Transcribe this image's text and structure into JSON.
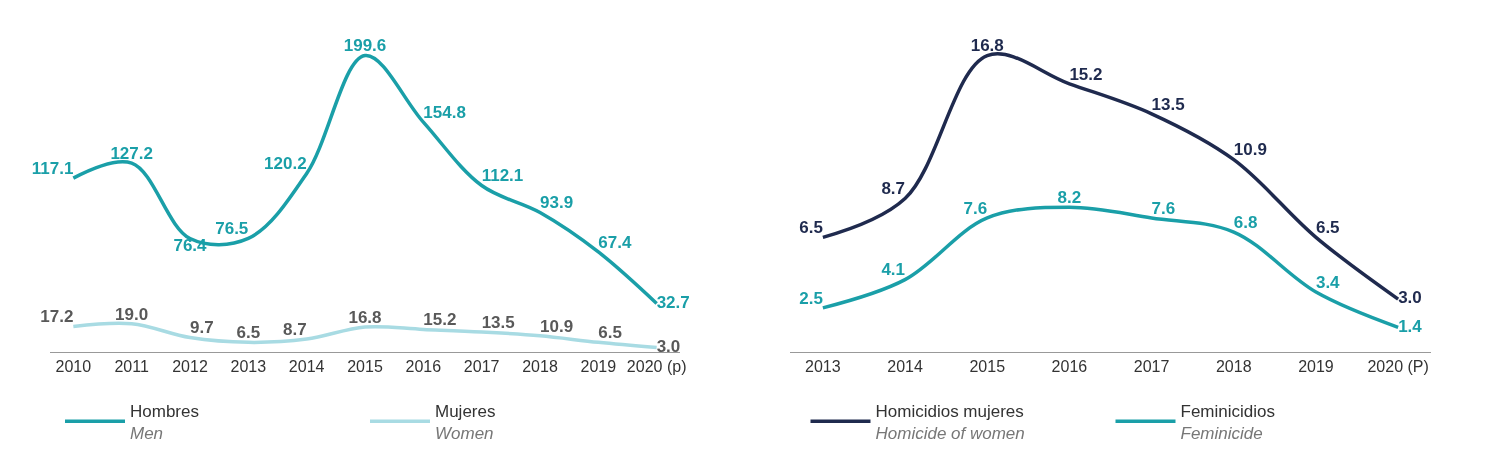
{
  "chart_data": [
    {
      "type": "line",
      "categories": [
        "2010",
        "2011",
        "2012",
        "2013",
        "2014",
        "2015",
        "2016",
        "2017",
        "2018",
        "2019",
        "2020 (p)"
      ],
      "data_labels": true,
      "grid": false,
      "legend": "bottom",
      "marker": "none",
      "line_style": "solid",
      "series": [
        {
          "name": "Hombres\nMen",
          "color": "#1a9fa8",
          "values": [
            117.1,
            127.2,
            76.4,
            76.5,
            120.2,
            199.6,
            154.8,
            112.1,
            93.9,
            67.4,
            32.7
          ]
        },
        {
          "name": "Mujeres\nWomen",
          "color": "#a8dbe3",
          "values": [
            17.2,
            19.0,
            9.7,
            6.5,
            8.7,
            16.8,
            15.2,
            13.5,
            10.9,
            6.5,
            3.0
          ],
          "value_labels": [
            "17.2",
            "19.0",
            "9.7",
            "6.5",
            "8.7",
            "16.8",
            "15.2",
            "13.5",
            "10.9",
            "6.5",
            "3.0"
          ]
        }
      ]
    },
    {
      "type": "line",
      "categories": [
        "2013",
        "2014",
        "2015",
        "2016",
        "2017",
        "2018",
        "2019",
        "2020 (P)"
      ],
      "data_labels": true,
      "grid": false,
      "legend": "bottom",
      "marker": "none",
      "line_style": "solid",
      "series": [
        {
          "name": "Homicidios mujeres\nHomicide of women",
          "color": "#1f2a4e",
          "values": [
            6.5,
            8.7,
            16.8,
            15.2,
            13.5,
            10.9,
            6.5,
            3.0
          ],
          "value_labels": [
            "6.5",
            "8.7",
            "16.8",
            "15.2",
            "13.5",
            "10.9",
            "6.5",
            "3.0"
          ]
        },
        {
          "name": "Feminicidios\nFeminicide",
          "color": "#1a9fa8",
          "values": [
            2.5,
            4.1,
            7.6,
            8.2,
            7.6,
            6.8,
            3.4,
            1.4
          ]
        }
      ]
    }
  ]
}
